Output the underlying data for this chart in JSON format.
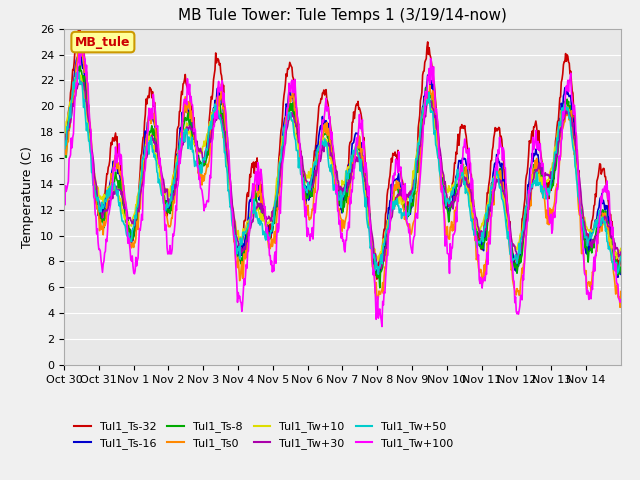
{
  "title": "MB Tule Tower: Tule Temps 1 (3/19/14-now)",
  "xlabel": "",
  "ylabel": "Temperature (C)",
  "n_days": 16,
  "ylim": [
    0,
    26
  ],
  "yticks": [
    0,
    2,
    4,
    6,
    8,
    10,
    12,
    14,
    16,
    18,
    20,
    22,
    24,
    26
  ],
  "xtick_labels": [
    "Oct 30",
    "Oct 31",
    "Nov 1",
    "Nov 2",
    "Nov 3",
    "Nov 4",
    "Nov 5",
    "Nov 6",
    "Nov 7",
    "Nov 8",
    "Nov 9",
    "Nov 10",
    "Nov 11",
    "Nov 12",
    "Nov 13",
    "Nov 14"
  ],
  "xtick_positions": [
    0,
    1,
    2,
    3,
    4,
    5,
    6,
    7,
    8,
    9,
    10,
    11,
    12,
    13,
    14,
    15
  ],
  "legend_box_label": "MB_tule",
  "legend_box_color": "#ffff99",
  "legend_box_border": "#cc9900",
  "series": [
    {
      "label": "Tul1_Ts-32",
      "color": "#cc0000"
    },
    {
      "label": "Tul1_Ts-16",
      "color": "#0000cc"
    },
    {
      "label": "Tul1_Ts-8",
      "color": "#00aa00"
    },
    {
      "label": "Tul1_Ts0",
      "color": "#ff8800"
    },
    {
      "label": "Tul1_Tw+10",
      "color": "#dddd00"
    },
    {
      "label": "Tul1_Tw+30",
      "color": "#aa00aa"
    },
    {
      "label": "Tul1_Tw+50",
      "color": "#00cccc"
    },
    {
      "label": "Tul1_Tw+100",
      "color": "#ff00ff"
    }
  ],
  "background_color": "#e8e8e8",
  "grid_color": "#ffffff",
  "title_fontsize": 11,
  "axis_fontsize": 9,
  "tick_fontsize": 8
}
